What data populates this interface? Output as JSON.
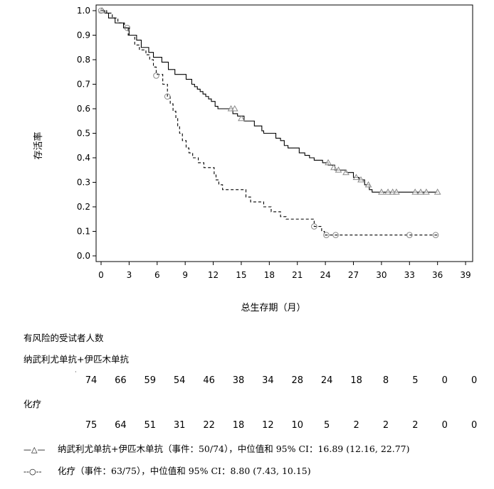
{
  "chart_data": {
    "type": "line",
    "xlabel": "总生存期（月）",
    "ylabel": "存活率",
    "xlim": [
      0,
      39
    ],
    "ylim": [
      0,
      1.0
    ],
    "xticks": [
      "0",
      "3",
      "6",
      "9",
      "12",
      "15",
      "18",
      "21",
      "24",
      "27",
      "30",
      "33",
      "36",
      "39"
    ],
    "yticks": [
      "0.0",
      "0.1",
      "0.2",
      "0.3",
      "0.4",
      "0.5",
      "0.6",
      "0.7",
      "0.8",
      "0.9",
      "1.0"
    ],
    "grid": false,
    "series": [
      {
        "name": "纳武利尤单抗+伊匹木单抗",
        "style": "solid",
        "censor_marker": "triangle",
        "steps": [
          [
            0,
            1.0
          ],
          [
            0.4,
            0.99
          ],
          [
            0.8,
            0.97
          ],
          [
            1.5,
            0.95
          ],
          [
            2.4,
            0.93
          ],
          [
            3.0,
            0.9
          ],
          [
            3.8,
            0.88
          ],
          [
            4.3,
            0.85
          ],
          [
            5.1,
            0.83
          ],
          [
            5.6,
            0.81
          ],
          [
            6.5,
            0.79
          ],
          [
            7.2,
            0.76
          ],
          [
            7.9,
            0.74
          ],
          [
            9.1,
            0.72
          ],
          [
            9.7,
            0.7
          ],
          [
            10.0,
            0.69
          ],
          [
            10.3,
            0.68
          ],
          [
            10.6,
            0.67
          ],
          [
            10.9,
            0.66
          ],
          [
            11.2,
            0.65
          ],
          [
            11.5,
            0.64
          ],
          [
            11.8,
            0.63
          ],
          [
            12.2,
            0.61
          ],
          [
            12.5,
            0.6
          ],
          [
            14.1,
            0.58
          ],
          [
            14.6,
            0.57
          ],
          [
            15.3,
            0.55
          ],
          [
            16.4,
            0.53
          ],
          [
            17.2,
            0.51
          ],
          [
            17.4,
            0.5
          ],
          [
            18.7,
            0.48
          ],
          [
            19.2,
            0.47
          ],
          [
            19.6,
            0.45
          ],
          [
            20.0,
            0.44
          ],
          [
            21.2,
            0.42
          ],
          [
            21.8,
            0.41
          ],
          [
            22.3,
            0.4
          ],
          [
            22.8,
            0.39
          ],
          [
            23.7,
            0.38
          ],
          [
            24.3,
            0.37
          ],
          [
            25.0,
            0.35
          ],
          [
            26.2,
            0.34
          ],
          [
            27.0,
            0.32
          ],
          [
            27.6,
            0.31
          ],
          [
            28.2,
            0.29
          ],
          [
            28.7,
            0.27
          ],
          [
            29.0,
            0.26
          ],
          [
            36.0,
            0.26
          ]
        ],
        "censors": [
          [
            0.1,
            1.0
          ],
          [
            13.9,
            0.6
          ],
          [
            14.3,
            0.6
          ],
          [
            15.0,
            0.56
          ],
          [
            24.3,
            0.38
          ],
          [
            24.9,
            0.36
          ],
          [
            25.4,
            0.35
          ],
          [
            26.2,
            0.34
          ],
          [
            27.3,
            0.32
          ],
          [
            27.8,
            0.31
          ],
          [
            28.6,
            0.29
          ],
          [
            30.0,
            0.26
          ],
          [
            30.7,
            0.26
          ],
          [
            31.2,
            0.26
          ],
          [
            31.6,
            0.26
          ],
          [
            33.6,
            0.26
          ],
          [
            34.2,
            0.26
          ],
          [
            34.8,
            0.26
          ],
          [
            36.0,
            0.26
          ]
        ]
      },
      {
        "name": "化疗",
        "style": "dashed",
        "censor_marker": "circle",
        "steps": [
          [
            0,
            1.0
          ],
          [
            0.6,
            0.99
          ],
          [
            1.2,
            0.97
          ],
          [
            1.8,
            0.95
          ],
          [
            2.5,
            0.93
          ],
          [
            2.9,
            0.9
          ],
          [
            3.6,
            0.86
          ],
          [
            4.1,
            0.84
          ],
          [
            4.8,
            0.82
          ],
          [
            5.2,
            0.8
          ],
          [
            5.6,
            0.77
          ],
          [
            5.9,
            0.74
          ],
          [
            6.6,
            0.7
          ],
          [
            7.1,
            0.65
          ],
          [
            7.4,
            0.62
          ],
          [
            7.7,
            0.59
          ],
          [
            8.0,
            0.56
          ],
          [
            8.2,
            0.53
          ],
          [
            8.4,
            0.5
          ],
          [
            8.7,
            0.47
          ],
          [
            9.1,
            0.44
          ],
          [
            9.4,
            0.42
          ],
          [
            9.8,
            0.4
          ],
          [
            10.4,
            0.38
          ],
          [
            11.0,
            0.36
          ],
          [
            12.1,
            0.33
          ],
          [
            12.3,
            0.31
          ],
          [
            12.6,
            0.29
          ],
          [
            13.0,
            0.27
          ],
          [
            15.5,
            0.24
          ],
          [
            16.0,
            0.22
          ],
          [
            17.4,
            0.2
          ],
          [
            18.2,
            0.18
          ],
          [
            19.2,
            0.16
          ],
          [
            19.8,
            0.15
          ],
          [
            22.8,
            0.12
          ],
          [
            23.6,
            0.1
          ],
          [
            23.9,
            0.085
          ],
          [
            36.0,
            0.085
          ]
        ],
        "censors": [
          [
            0,
            1.0
          ],
          [
            2.8,
            0.93
          ],
          [
            5.9,
            0.735
          ],
          [
            7.1,
            0.65
          ],
          [
            22.8,
            0.12
          ],
          [
            24.1,
            0.085
          ],
          [
            25.1,
            0.085
          ],
          [
            33.0,
            0.085
          ],
          [
            35.8,
            0.085
          ]
        ]
      }
    ]
  },
  "risk_table": {
    "title": "有风险的受试者人数",
    "groups": [
      {
        "label": "纳武利尤单抗+伊匹木单抗",
        "counts": [
          "74",
          "66",
          "59",
          "54",
          "46",
          "38",
          "34",
          "28",
          "24",
          "18",
          "8",
          "5",
          "0",
          "0"
        ]
      },
      {
        "label": "化疗",
        "counts": [
          "75",
          "64",
          "51",
          "31",
          "22",
          "18",
          "12",
          "10",
          "5",
          "2",
          "2",
          "2",
          "0",
          "0"
        ]
      }
    ]
  },
  "legend": [
    {
      "key": "—△—",
      "text": "纳武利尤单抗+伊匹木单抗（事件：50/74），中位值和 95% CI：16.89 (12.16, 22.77)"
    },
    {
      "key": "--○--",
      "text": "化疗（事件：63/75），中位值和 95% CI：8.80 (7.43, 10.15)"
    }
  ]
}
